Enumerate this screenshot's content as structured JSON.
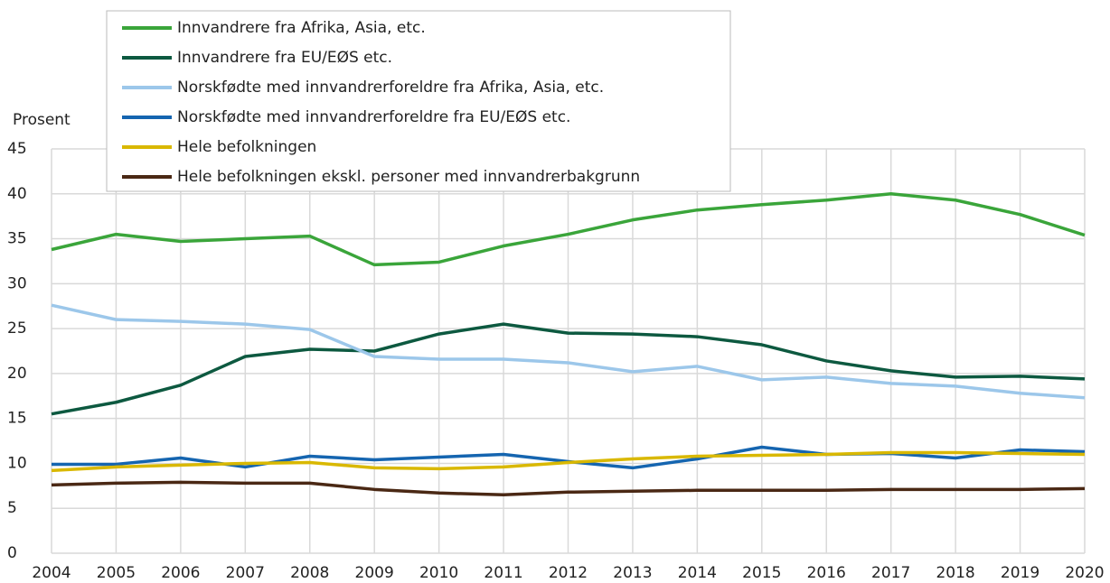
{
  "chart_data": {
    "type": "line",
    "y_label": "Prosent",
    "x": [
      2004,
      2005,
      2006,
      2007,
      2008,
      2009,
      2010,
      2011,
      2012,
      2013,
      2014,
      2015,
      2016,
      2017,
      2018,
      2019,
      2020
    ],
    "xlim": [
      2004,
      2020
    ],
    "xticks": [
      2004,
      2005,
      2006,
      2007,
      2008,
      2009,
      2010,
      2011,
      2012,
      2013,
      2014,
      2015,
      2016,
      2017,
      2018,
      2019,
      2020
    ],
    "ylim": [
      0,
      45
    ],
    "yticks": [
      0,
      5,
      10,
      15,
      20,
      25,
      30,
      35,
      40,
      45
    ],
    "grid": true,
    "legend": "top",
    "series": [
      {
        "name": "Innvandrere fra Afrika, Asia, etc.",
        "color": "#3aa53a",
        "values": [
          33.8,
          35.5,
          34.7,
          35.0,
          35.3,
          32.1,
          32.4,
          34.2,
          35.5,
          37.1,
          38.2,
          38.8,
          39.3,
          40.0,
          39.3,
          37.7,
          35.4
        ]
      },
      {
        "name": "Innvandrere fra EU/EØS etc.",
        "color": "#0d5940",
        "values": [
          15.5,
          16.8,
          18.7,
          21.9,
          22.7,
          22.5,
          24.4,
          25.5,
          24.5,
          24.4,
          24.1,
          23.2,
          21.4,
          20.3,
          19.6,
          19.7,
          19.4
        ]
      },
      {
        "name": "Norskfødte med innvandrerforeldre fra Afrika, Asia, etc.",
        "color": "#9cc7ea",
        "values": [
          27.6,
          26.0,
          25.8,
          25.5,
          24.9,
          21.9,
          21.6,
          21.6,
          21.2,
          20.2,
          20.8,
          19.3,
          19.6,
          18.9,
          18.6,
          17.8,
          17.3
        ]
      },
      {
        "name": "Norskfødte med innvandrerforeldre fra EU/EØS etc.",
        "color": "#1565b0",
        "values": [
          9.9,
          9.9,
          10.6,
          9.6,
          10.8,
          10.4,
          10.7,
          11.0,
          10.2,
          9.5,
          10.5,
          11.8,
          11.0,
          11.1,
          10.6,
          11.5,
          11.3
        ]
      },
      {
        "name": "Hele befolkningen",
        "color": "#d9b800",
        "values": [
          9.2,
          9.6,
          9.8,
          10.0,
          10.1,
          9.5,
          9.4,
          9.6,
          10.1,
          10.5,
          10.8,
          10.9,
          11.0,
          11.2,
          11.2,
          11.1,
          11.0
        ]
      },
      {
        "name": "Hele befolkningen ekskl. personer med innvandrerbakgrunn",
        "color": "#4a2814",
        "values": [
          7.6,
          7.8,
          7.9,
          7.8,
          7.8,
          7.1,
          6.7,
          6.5,
          6.8,
          6.9,
          7.0,
          7.0,
          7.0,
          7.1,
          7.1,
          7.1,
          7.2
        ]
      }
    ]
  }
}
